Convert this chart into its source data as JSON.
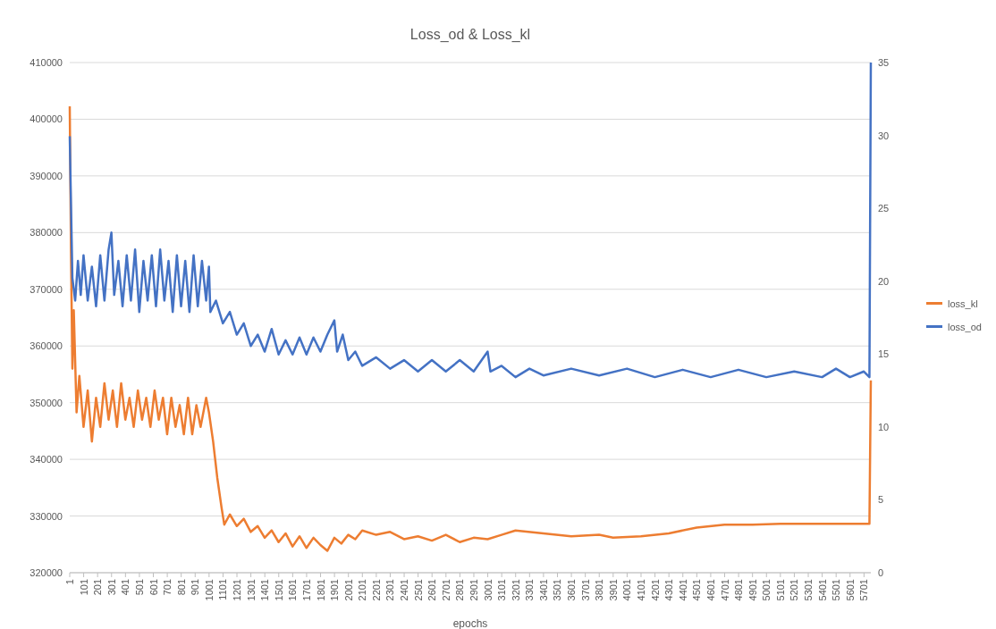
{
  "chart_data": {
    "type": "line",
    "title": "Loss_od & Loss_kl",
    "xlabel": "epochs",
    "grid": "y",
    "legend": "right",
    "line_style": "solid",
    "marker": "none",
    "xlim": [
      1,
      5750
    ],
    "xticks": [
      1,
      101,
      201,
      301,
      401,
      501,
      601,
      701,
      801,
      901,
      1001,
      1101,
      1201,
      1301,
      1401,
      1501,
      1601,
      1701,
      1801,
      1901,
      2001,
      2101,
      2201,
      2301,
      2401,
      2501,
      2601,
      2701,
      2801,
      2901,
      3001,
      3101,
      3201,
      3301,
      3401,
      3501,
      3601,
      3701,
      3801,
      3901,
      4001,
      4101,
      4201,
      4301,
      4401,
      4501,
      4601,
      4701,
      4801,
      4901,
      5001,
      5101,
      5201,
      5301,
      5401,
      5501,
      5601,
      5701
    ],
    "ylim": [
      320000,
      410000
    ],
    "yticks": [
      320000,
      330000,
      340000,
      350000,
      360000,
      370000,
      380000,
      390000,
      400000,
      410000
    ],
    "y2lim": [
      0,
      35
    ],
    "y2ticks": [
      0,
      5,
      10,
      15,
      20,
      25,
      30,
      35
    ],
    "series": [
      {
        "name": "loss_kl",
        "color": "#ed7d31",
        "axis": "y2",
        "x": [
          1,
          10,
          20,
          30,
          50,
          70,
          100,
          130,
          160,
          190,
          220,
          250,
          280,
          310,
          340,
          370,
          400,
          430,
          460,
          490,
          520,
          550,
          580,
          610,
          640,
          670,
          700,
          730,
          760,
          790,
          820,
          850,
          880,
          910,
          940,
          980,
          1000,
          1030,
          1060,
          1090,
          1110,
          1150,
          1200,
          1250,
          1300,
          1350,
          1400,
          1450,
          1500,
          1550,
          1600,
          1650,
          1700,
          1750,
          1800,
          1850,
          1900,
          1950,
          2000,
          2050,
          2100,
          2200,
          2300,
          2400,
          2500,
          2600,
          2700,
          2800,
          2900,
          3000,
          3100,
          3200,
          3400,
          3600,
          3800,
          3900,
          4100,
          4300,
          4500,
          4700,
          4900,
          5100,
          5300,
          5500,
          5740,
          5750
        ],
        "values": [
          32,
          22,
          14,
          18,
          11,
          13.5,
          10,
          12.5,
          9,
          12,
          10,
          13,
          10.5,
          12.5,
          10,
          13,
          10.5,
          12,
          10,
          12.5,
          10.5,
          12,
          10,
          12.5,
          10.5,
          12,
          9.5,
          12,
          10,
          11.5,
          9.5,
          12,
          9.5,
          11.5,
          10,
          12,
          11,
          9,
          6.5,
          4.5,
          3.3,
          4,
          3.2,
          3.7,
          2.8,
          3.2,
          2.4,
          2.9,
          2.1,
          2.7,
          1.8,
          2.5,
          1.7,
          2.4,
          1.9,
          1.5,
          2.4,
          2,
          2.6,
          2.3,
          2.9,
          2.6,
          2.8,
          2.3,
          2.5,
          2.2,
          2.6,
          2.1,
          2.4,
          2.3,
          2.6,
          2.9,
          2.7,
          2.5,
          2.6,
          2.4,
          2.5,
          2.7,
          3.1,
          3.3,
          3.3,
          3.35,
          3.35,
          3.35,
          3.35,
          13.2
        ]
      },
      {
        "name": "loss_od",
        "color": "#4472c4",
        "x": [
          1,
          10,
          20,
          40,
          60,
          80,
          100,
          130,
          160,
          190,
          220,
          250,
          280,
          300,
          320,
          350,
          380,
          410,
          440,
          470,
          500,
          530,
          560,
          590,
          620,
          650,
          680,
          710,
          740,
          770,
          800,
          830,
          860,
          890,
          920,
          950,
          980,
          1000,
          1010,
          1050,
          1100,
          1150,
          1200,
          1250,
          1300,
          1350,
          1400,
          1450,
          1500,
          1550,
          1600,
          1650,
          1700,
          1750,
          1800,
          1850,
          1900,
          1920,
          1960,
          2000,
          2050,
          2100,
          2200,
          2300,
          2400,
          2500,
          2600,
          2700,
          2800,
          2900,
          3000,
          3020,
          3100,
          3200,
          3300,
          3400,
          3600,
          3800,
          4000,
          4200,
          4400,
          4600,
          4800,
          5000,
          5200,
          5400,
          5500,
          5600,
          5700,
          5740,
          5750
        ],
        "values": [
          397000,
          385000,
          372000,
          368000,
          375000,
          369000,
          376000,
          368000,
          374000,
          367000,
          376000,
          368000,
          377000,
          380000,
          369000,
          375000,
          367000,
          376000,
          368000,
          377000,
          366000,
          375000,
          368000,
          376000,
          367000,
          377000,
          368000,
          375000,
          366000,
          376000,
          367000,
          375000,
          366000,
          376000,
          367000,
          375000,
          368000,
          374000,
          366000,
          368000,
          364000,
          366000,
          362000,
          364000,
          360000,
          362000,
          359000,
          363000,
          358500,
          361000,
          358500,
          361500,
          358500,
          361500,
          359000,
          362000,
          364500,
          359000,
          362000,
          357500,
          359000,
          356500,
          358000,
          356000,
          357500,
          355500,
          357500,
          355500,
          357500,
          355500,
          359000,
          355500,
          356500,
          354500,
          356000,
          354800,
          356000,
          354800,
          356000,
          354500,
          355800,
          354500,
          355800,
          354500,
          355500,
          354500,
          356000,
          354500,
          355500,
          354500,
          410000
        ]
      }
    ]
  }
}
